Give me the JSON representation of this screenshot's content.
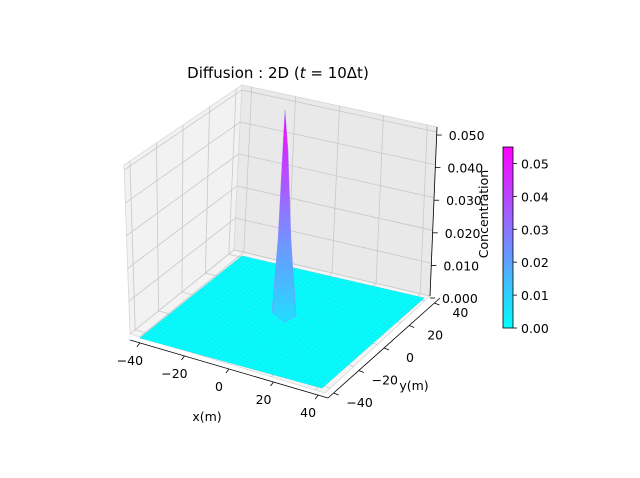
{
  "chart_data": {
    "type": "surface",
    "title": "Diffusion : 2D ",
    "title_math_t": "t",
    "title_math_rest": " = 10Δt",
    "title_paren_open": "(",
    "title_paren_close": ")",
    "xlabel": "x(m)",
    "ylabel": "y(m)",
    "zlabel": "Concentration",
    "x_ticks": [
      "−40",
      "−20",
      "0",
      "20",
      "40"
    ],
    "y_ticks": [
      "−40",
      "−20",
      "0",
      "20",
      "40"
    ],
    "z_ticks": [
      "0.000",
      "0.010",
      "0.020",
      "0.030",
      "0.040",
      "0.050"
    ],
    "xlim": [
      -50,
      50
    ],
    "ylim": [
      -50,
      50
    ],
    "zlim": [
      0,
      0.05
    ],
    "peak": {
      "x": 0,
      "y": 0,
      "value": 0.055
    },
    "colormap": "cool",
    "colormap_colors": [
      "#00ffff",
      "#ff00ff"
    ],
    "colorbar": {
      "ticks": [
        "0.00",
        "0.01",
        "0.02",
        "0.03",
        "0.04",
        "0.05"
      ],
      "range": [
        0,
        0.055
      ]
    },
    "grid": true
  }
}
